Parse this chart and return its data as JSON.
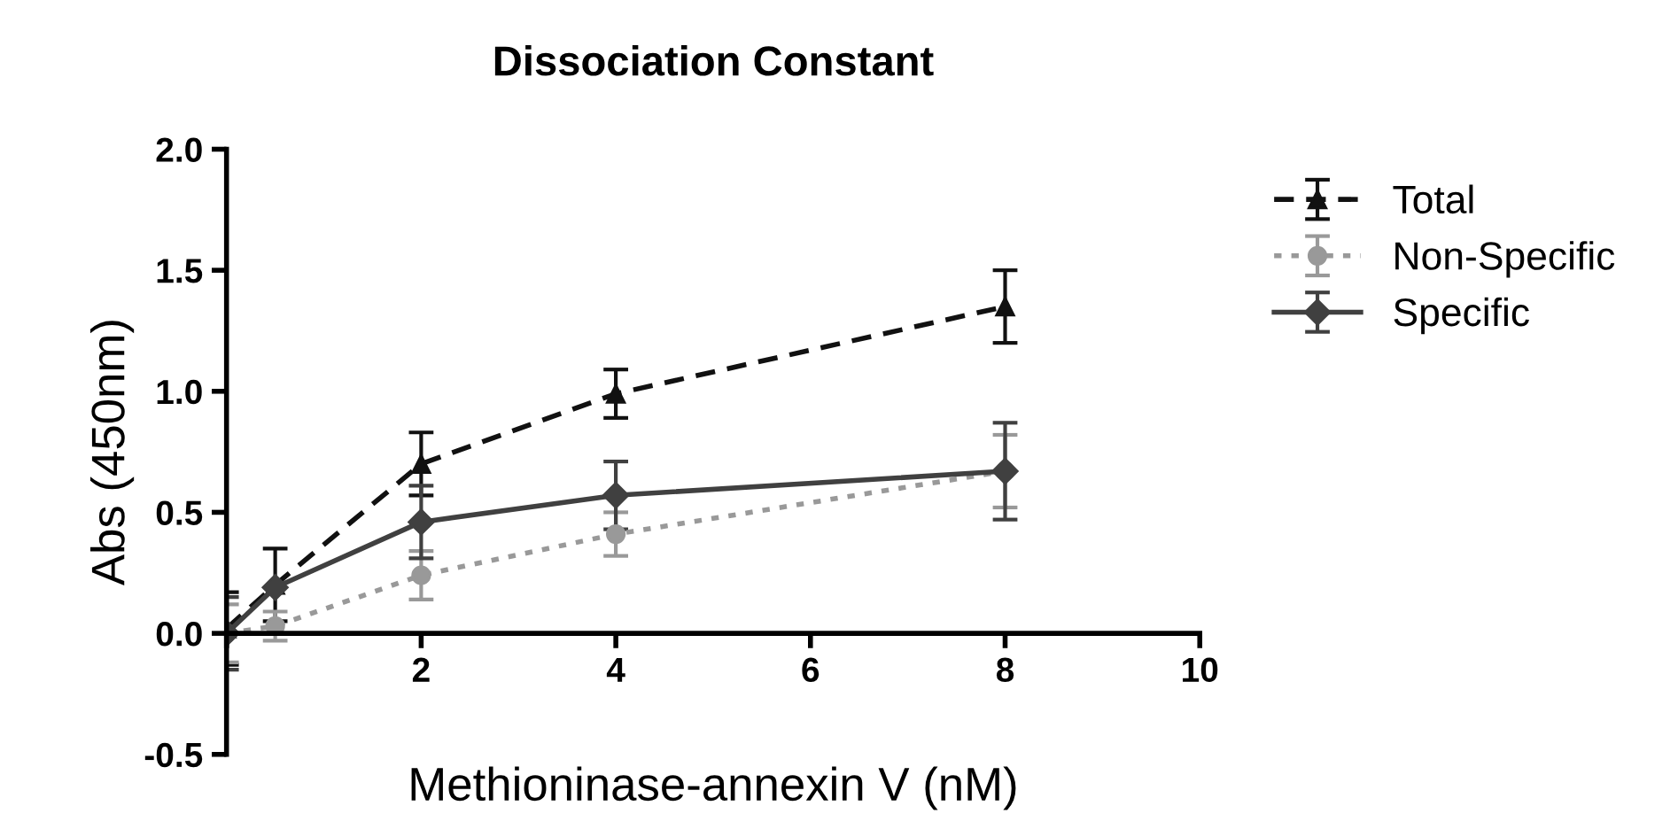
{
  "chart_data": {
    "type": "line",
    "title": "Dissociation Constant",
    "xlabel": "Methioninase-annexin V (nM)",
    "ylabel": "Abs (450nm)",
    "x": [
      0,
      0.5,
      2,
      4,
      8
    ],
    "series": [
      {
        "name": "Total",
        "color": "#111111",
        "marker": "triangle",
        "line_style": "dashed",
        "values": [
          0.02,
          0.2,
          0.7,
          0.99,
          1.35
        ],
        "errors": [
          0.15,
          0.15,
          0.13,
          0.1,
          0.15
        ]
      },
      {
        "name": "Non-Specific",
        "color": "#999999",
        "marker": "circle",
        "line_style": "dotted",
        "values": [
          0.0,
          0.03,
          0.24,
          0.41,
          0.67
        ],
        "errors": [
          0.12,
          0.06,
          0.1,
          0.09,
          0.15
        ]
      },
      {
        "name": "Specific",
        "color": "#404040",
        "marker": "diamond",
        "line_style": "solid",
        "values": [
          0.0,
          0.19,
          0.46,
          0.57,
          0.67
        ],
        "errors": [
          0.15,
          null,
          0.15,
          0.14,
          0.2
        ]
      }
    ],
    "xlim": [
      0,
      10
    ],
    "xticks": [
      {
        "value": 0,
        "label": null
      },
      2,
      4,
      6,
      8,
      10
    ],
    "ylim": [
      -0.5,
      2.0
    ],
    "yticks": [
      {
        "value": -0.5,
        "label": "-0.5"
      },
      {
        "value": 0,
        "label": "0.0"
      },
      {
        "value": 0.5,
        "label": "0.5"
      },
      {
        "value": 1.0,
        "label": "1.0"
      },
      {
        "value": 1.5,
        "label": "1.5"
      },
      {
        "value": 2.0,
        "label": "2.0"
      }
    ],
    "grid": false,
    "legend": "right"
  }
}
